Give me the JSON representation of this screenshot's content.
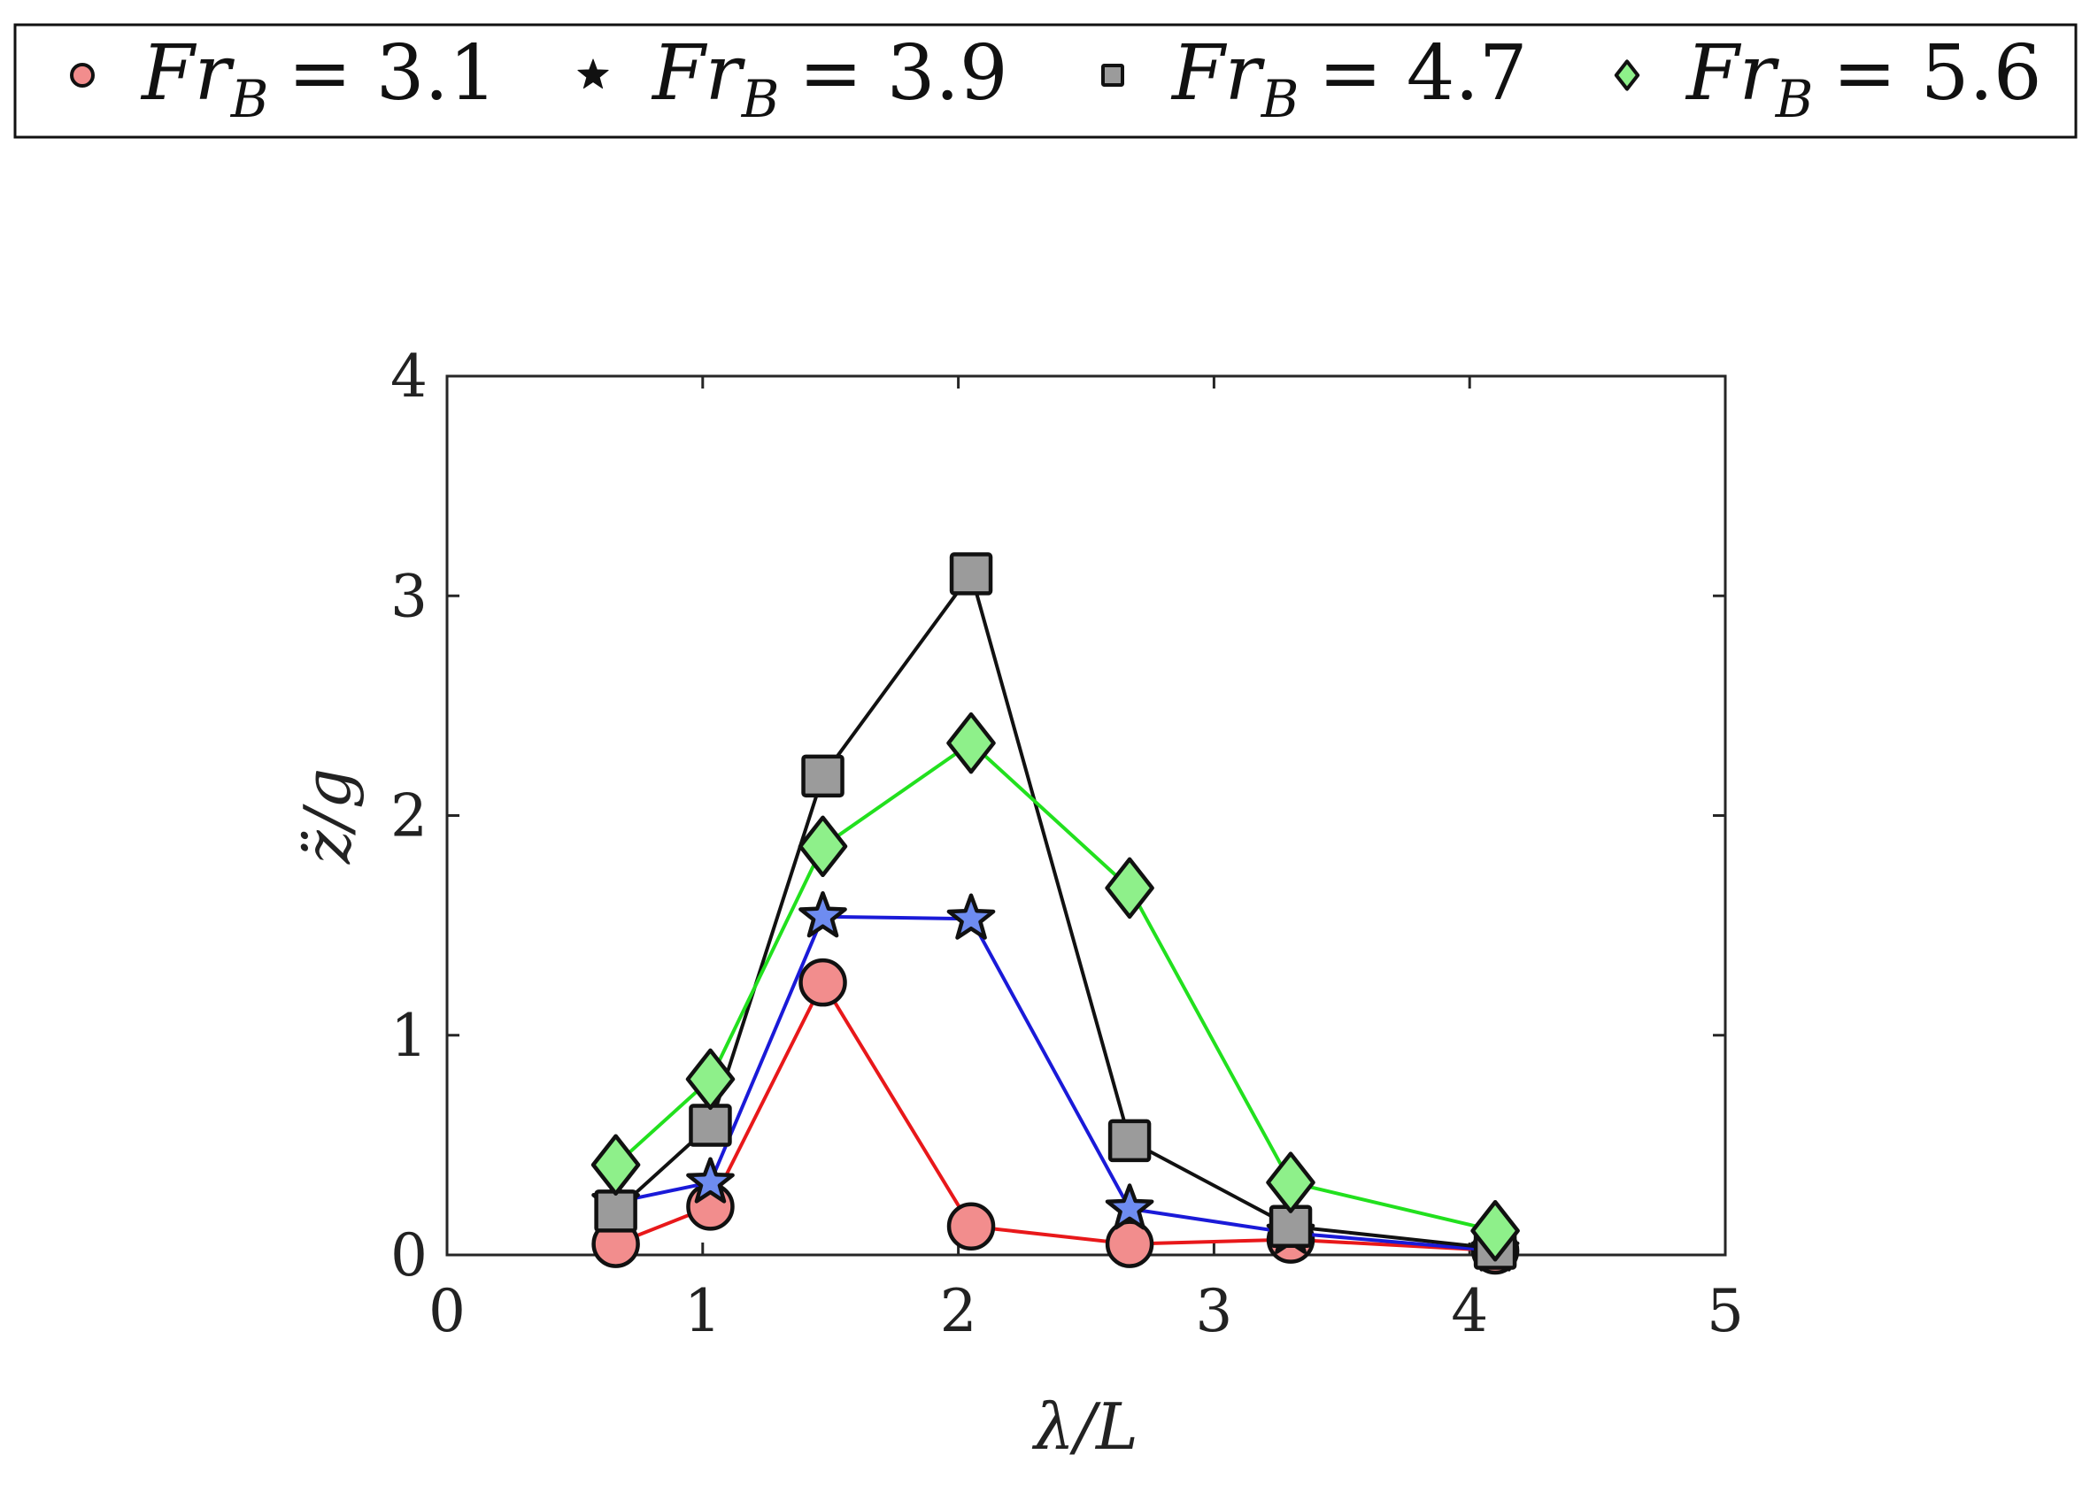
{
  "chart_data": {
    "type": "line",
    "xlabel": "λ/L",
    "ylabel": "z̈/g",
    "xlim": [
      0,
      5
    ],
    "ylim": [
      0,
      4
    ],
    "xticks": [
      "0",
      "1",
      "2",
      "3",
      "4",
      "5"
    ],
    "yticks": [
      "0",
      "1",
      "2",
      "3",
      "4"
    ],
    "grid": false,
    "legend_position": "top",
    "series": [
      {
        "name": "Fr_B = 3.1",
        "legend_base": "Fr",
        "legend_sub": "B",
        "legend_value": "= 3.1",
        "marker": "circle",
        "line_color": "#e8181a",
        "marker_fill": "#f28d8d",
        "x": [
          0.66,
          1.03,
          1.47,
          2.05,
          2.67,
          3.3,
          4.1
        ],
        "y": [
          0.05,
          0.22,
          1.24,
          0.13,
          0.05,
          0.07,
          0.02
        ]
      },
      {
        "name": "Fr_B = 3.9",
        "legend_base": "Fr",
        "legend_sub": "B",
        "legend_value": "= 3.9",
        "marker": "star",
        "line_color": "#1a1ad8",
        "marker_fill": "#6e8cf0",
        "x": [
          0.66,
          1.03,
          1.47,
          2.05,
          2.67,
          3.3,
          4.1
        ],
        "y": [
          0.24,
          0.33,
          1.54,
          1.53,
          0.21,
          0.1,
          0.02
        ]
      },
      {
        "name": "Fr_B = 4.7",
        "legend_base": "Fr",
        "legend_sub": "B",
        "legend_value": "= 4.7",
        "marker": "square",
        "line_color": "#111111",
        "marker_fill": "#9b9b9b",
        "x": [
          0.66,
          1.03,
          1.47,
          2.05,
          2.67,
          3.3,
          4.1
        ],
        "y": [
          0.2,
          0.59,
          2.18,
          3.1,
          0.52,
          0.13,
          0.03
        ]
      },
      {
        "name": "Fr_B = 5.6",
        "legend_base": "Fr",
        "legend_sub": "B",
        "legend_value": "= 5.6",
        "marker": "diamond",
        "line_color": "#22e01e",
        "marker_fill": "#8ef08a",
        "x": [
          0.66,
          1.03,
          1.47,
          2.05,
          2.67,
          3.3,
          4.1
        ],
        "y": [
          0.41,
          0.8,
          1.86,
          2.33,
          1.67,
          0.33,
          0.11
        ]
      }
    ]
  }
}
